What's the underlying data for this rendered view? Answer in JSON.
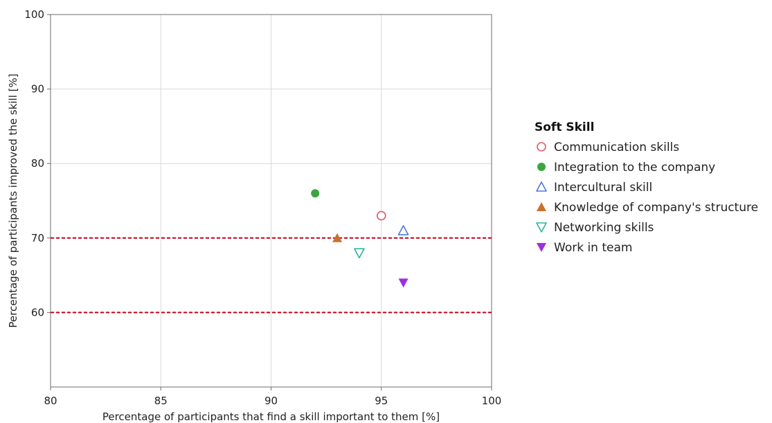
{
  "chart_data": {
    "type": "scatter",
    "xlabel": "Percentage of participants that find a skill important to them [%]",
    "ylabel": "Percentage of participants improved the skill [%]",
    "xlim": [
      80,
      100
    ],
    "ylim": [
      50,
      100
    ],
    "x_ticks": [
      80,
      85,
      90,
      95,
      100
    ],
    "y_ticks": [
      60,
      70,
      80,
      90,
      100
    ],
    "grid": true,
    "legend_title": "Soft Skill",
    "legend_position": "right",
    "reference_lines": [
      {
        "y": 70,
        "style": "dashed",
        "color": "#c00018"
      },
      {
        "y": 60,
        "style": "dashed",
        "color": "#c00018"
      }
    ],
    "series": [
      {
        "name": "Communication skills",
        "x": 95,
        "y": 73,
        "marker": "circle-open",
        "color": "#e05a6a"
      },
      {
        "name": "Integration to the company",
        "x": 92,
        "y": 76,
        "marker": "circle-filled",
        "color": "#3aa640"
      },
      {
        "name": "Intercultural skill",
        "x": 96,
        "y": 71,
        "marker": "triangle-up-open",
        "color": "#4f78d8"
      },
      {
        "name": "Knowledge of company's structure",
        "x": 93,
        "y": 70,
        "marker": "triangle-up-filled",
        "color": "#c8722a"
      },
      {
        "name": "Networking skills",
        "x": 94,
        "y": 68,
        "marker": "triangle-down-open",
        "color": "#2ab39a"
      },
      {
        "name": "Work in team",
        "x": 96,
        "y": 64,
        "marker": "triangle-down-filled",
        "color": "#9b30e0"
      }
    ]
  }
}
